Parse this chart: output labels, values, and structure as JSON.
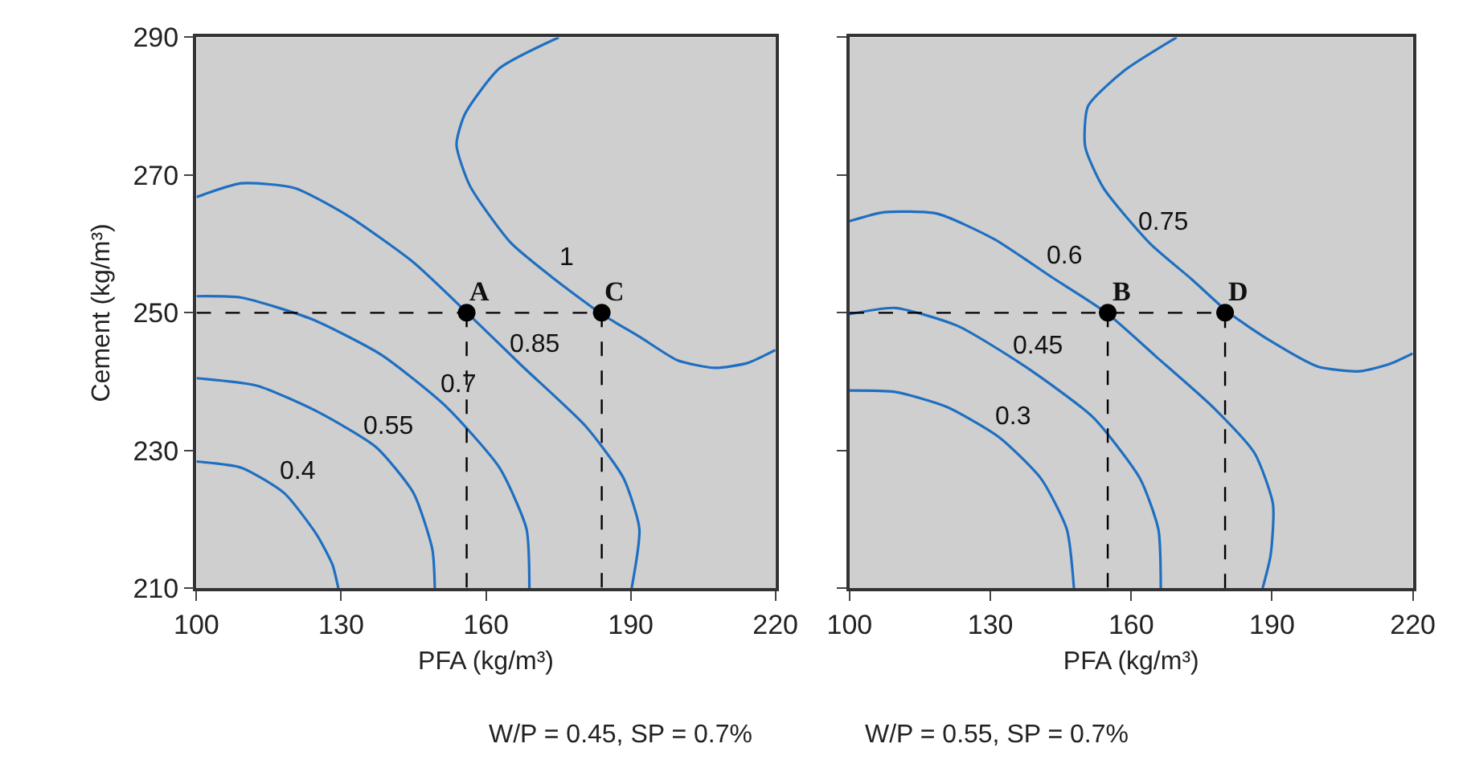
{
  "chart_data": [
    {
      "type": "line",
      "xlabel": "PFA (kg/m³)",
      "ylabel": "Cement (kg/m³)",
      "xlim": [
        100,
        220
      ],
      "ylim": [
        210,
        290
      ],
      "xticks": [
        100,
        130,
        160,
        190,
        220
      ],
      "yticks": [
        210,
        230,
        250,
        270,
        290
      ],
      "grid": false,
      "series": [
        {
          "color": "#1f6fc1",
          "line_style": "solid",
          "x": [
            100,
            109.3,
            118.2,
            124.9,
            128.2,
            129.4
          ],
          "values": [
            228.4,
            227.5,
            223.8,
            217.8,
            213.4,
            210
          ]
        },
        {
          "color": "#1f6fc1",
          "line_style": "solid",
          "x": [
            100,
            112.6,
            124.9,
            137.2,
            145,
            148.9,
            149.4
          ],
          "values": [
            240.5,
            239.4,
            235.7,
            230.5,
            223.8,
            215.6,
            210
          ]
        },
        {
          "color": "#1f6fc1",
          "line_style": "solid",
          "x": [
            100,
            109.3,
            123.8,
            138.3,
            151.7,
            162.8,
            168.4,
            169
          ],
          "values": [
            252.4,
            252.2,
            249.1,
            243.9,
            236.4,
            227.5,
            218.6,
            210
          ]
        },
        {
          "color": "#1f6fc1",
          "line_style": "solid",
          "x": [
            100,
            109.3,
            120.4,
            131.6,
            145,
            156.1,
            167.3,
            180.7,
            188.5,
            191.8,
            190.2
          ],
          "values": [
            266.8,
            268.8,
            268.1,
            264,
            257.3,
            250,
            242.4,
            233.5,
            226,
            218.6,
            210
          ]
        },
        {
          "color": "#1f6fc1",
          "line_style": "solid",
          "x": [
            175.1,
            162.8,
            155.6,
            153.9,
            156.7,
            165.1,
            174,
            184,
            191.9,
            199.7,
            207.5,
            214.2,
            220
          ],
          "values": [
            290,
            285.5,
            278.8,
            274.4,
            268.4,
            260.2,
            255,
            249.8,
            246.5,
            243.1,
            242,
            242.7,
            244.6
          ]
        },
        {
          "color": "#000000",
          "line_style": "dashed",
          "x": [
            100,
            184,
            184
          ],
          "values": [
            250,
            250,
            210
          ]
        },
        {
          "color": "#000000",
          "line_style": "dashed",
          "x": [
            156,
            156
          ],
          "values": [
            250,
            210
          ]
        },
        {
          "type": "scatter",
          "color": "#000000",
          "marker": "circle",
          "x": [
            156,
            184
          ],
          "values": [
            250,
            250
          ]
        }
      ],
      "annotations": [
        {
          "text": "0.4",
          "x": 118.2,
          "y": 223.8
        },
        {
          "text": "0.55",
          "x": 137.2,
          "y": 230.5
        },
        {
          "text": "0.7",
          "x": 151.7,
          "y": 236.4
        },
        {
          "text": "0.85",
          "x": 167.3,
          "y": 242.4
        },
        {
          "text": "1",
          "x": 174,
          "y": 255
        },
        {
          "text": "A",
          "x": 156,
          "y": 250
        },
        {
          "text": "C",
          "x": 184,
          "y": 250
        },
        "W/P = 0.45, SP = 0.7%"
      ]
    },
    {
      "type": "line",
      "xlabel": "PFA (kg/m³)",
      "xlim": [
        100,
        220
      ],
      "ylim": [
        210,
        290
      ],
      "xticks": [
        100,
        130,
        160,
        190,
        220
      ],
      "yticks": [
        210,
        230,
        250,
        270,
        290
      ],
      "grid": false,
      "tick_labels": "x",
      "series": [
        {
          "color": "#1f6fc1",
          "line_style": "solid",
          "x": [
            100,
            109.7,
            120.8,
            131.9,
            140.8,
            146.3,
            147.8
          ],
          "values": [
            238.7,
            238.5,
            236.3,
            231.9,
            225.9,
            218.5,
            210
          ]
        },
        {
          "color": "#1f6fc1",
          "line_style": "solid",
          "x": [
            100,
            109.7,
            123,
            137.4,
            151.9,
            161.9,
            165.8,
            166.3
          ],
          "values": [
            249.8,
            250.7,
            248.1,
            242.2,
            234.8,
            225.9,
            218.5,
            210
          ]
        },
        {
          "color": "#1f6fc1",
          "line_style": "solid",
          "x": [
            100,
            107.4,
            118.6,
            130.8,
            143,
            154.7,
            165.2,
            177.4,
            186.3,
            190.2,
            189.7,
            188
          ],
          "values": [
            263.3,
            264.6,
            264.4,
            260.7,
            255.2,
            250,
            243.7,
            236.3,
            229.6,
            222.2,
            214.8,
            210
          ]
        },
        {
          "color": "#1f6fc1",
          "line_style": "solid",
          "x": [
            169.7,
            158.6,
            150.8,
            150.2,
            154.1,
            164.1,
            173,
            180.8,
            189.7,
            199.7,
            208.6,
            215.2,
            220
          ],
          "values": [
            290,
            285.2,
            280,
            274.1,
            268.1,
            260,
            254.8,
            250,
            245.9,
            242.2,
            241.5,
            242.6,
            244.1
          ]
        },
        {
          "color": "#000000",
          "line_style": "dashed",
          "x": [
            100,
            180,
            180
          ],
          "values": [
            250,
            250,
            210
          ]
        },
        {
          "color": "#000000",
          "line_style": "dashed",
          "x": [
            155,
            155
          ],
          "values": [
            250,
            210
          ]
        },
        {
          "type": "scatter",
          "color": "#000000",
          "marker": "circle",
          "x": [
            155,
            180
          ],
          "values": [
            250,
            250
          ]
        }
      ],
      "annotations": [
        {
          "text": "0.3",
          "x": 131.9,
          "y": 231.9
        },
        {
          "text": "0.45",
          "x": 137.4,
          "y": 242.2
        },
        {
          "text": "0.6",
          "x": 143,
          "y": 255.2
        },
        {
          "text": "0.75",
          "x": 164.1,
          "y": 260
        },
        {
          "text": "B",
          "x": 155,
          "y": 250
        },
        {
          "text": "D",
          "x": 180,
          "y": 250
        },
        "W/P = 0.55, SP = 0.7%"
      ]
    }
  ]
}
